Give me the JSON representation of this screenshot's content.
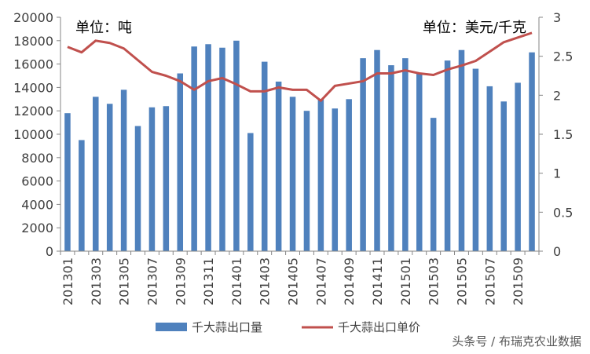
{
  "chart_data": {
    "type": "bar+line",
    "x": [
      "201301",
      "201302",
      "201303",
      "201304",
      "201305",
      "201306",
      "201307",
      "201308",
      "201309",
      "201310",
      "201311",
      "201312",
      "201401",
      "201402",
      "201403",
      "201404",
      "201405",
      "201406",
      "201407",
      "201408",
      "201409",
      "201410",
      "201411",
      "201412",
      "201501",
      "201502",
      "201503",
      "201504",
      "201505",
      "201506",
      "201507",
      "201508",
      "201509",
      "201510"
    ],
    "x_tick_labels": [
      "201301",
      "201303",
      "201305",
      "201307",
      "201309",
      "201311",
      "201401",
      "201403",
      "201405",
      "201407",
      "201409",
      "201411",
      "201501",
      "201503",
      "201505",
      "201507",
      "201509"
    ],
    "series": [
      {
        "name": "千大蒜出口量",
        "type": "bar",
        "axis": "left",
        "color": "#4F81BD",
        "values": [
          11800,
          9500,
          13200,
          12600,
          13800,
          10700,
          12300,
          12400,
          15200,
          17500,
          17700,
          17400,
          18000,
          10100,
          16200,
          14500,
          13200,
          12000,
          13000,
          12200,
          13000,
          16500,
          17200,
          15900,
          16500,
          15200,
          11400,
          16300,
          17200,
          15600,
          14100,
          12800,
          14400,
          17000
        ]
      },
      {
        "name": "千大蒜出口单价",
        "type": "line",
        "axis": "right",
        "color": "#C0504D",
        "values": [
          2.62,
          2.55,
          2.7,
          2.67,
          2.6,
          2.45,
          2.3,
          2.25,
          2.18,
          2.07,
          2.18,
          2.22,
          2.14,
          2.05,
          2.05,
          2.1,
          2.07,
          2.07,
          1.93,
          2.12,
          2.15,
          2.18,
          2.28,
          2.28,
          2.32,
          2.28,
          2.26,
          2.33,
          2.38,
          2.44,
          2.56,
          2.68,
          2.74,
          2.8
        ]
      }
    ],
    "y_left": {
      "ticks": [
        0,
        2000,
        4000,
        6000,
        8000,
        10000,
        12000,
        14000,
        16000,
        18000,
        20000
      ],
      "ylim": [
        0,
        20000
      ],
      "unit_label": "单位：吨"
    },
    "y_right": {
      "ticks": [
        "0",
        "0.5",
        "1",
        "1.5",
        "2",
        "2.5",
        "3"
      ],
      "ylim": [
        0,
        3
      ],
      "unit_label": "单位：美元/千克"
    },
    "grid": false,
    "legend_position": "bottom"
  },
  "watermark": "头条号 / 布瑞克农业数据"
}
